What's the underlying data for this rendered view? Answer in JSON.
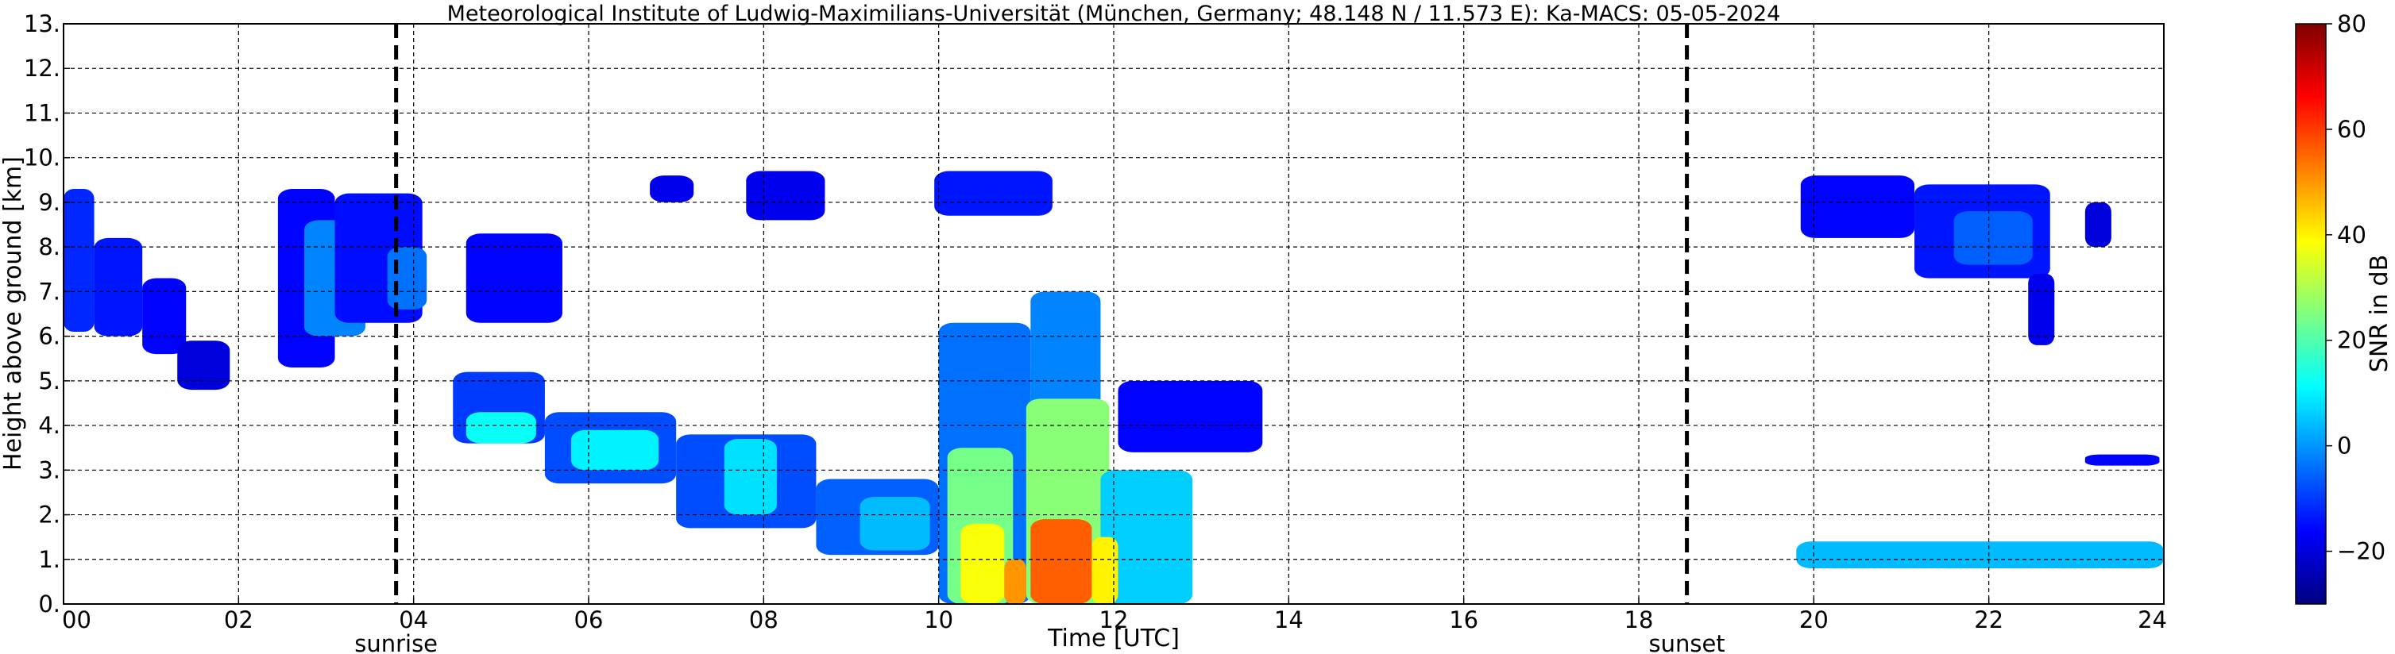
{
  "chart_data": {
    "type": "heatmap",
    "title": "Meteorological Institute of Ludwig-Maximilians-Universität (München, Germany; 48.148 N / 11.573 E):    Ka-MACS: 05-05-2024",
    "xlabel": "Time [UTC]",
    "ylabel": "Height above ground [km]",
    "xlim": [
      0,
      24
    ],
    "ylim": [
      0,
      13
    ],
    "grid": true,
    "x_ticks": [
      {
        "value": 0,
        "label": "00"
      },
      {
        "value": 2,
        "label": "02"
      },
      {
        "value": 4,
        "label": "04"
      },
      {
        "value": 6,
        "label": "06"
      },
      {
        "value": 8,
        "label": "08"
      },
      {
        "value": 10,
        "label": "10"
      },
      {
        "value": 12,
        "label": "12"
      },
      {
        "value": 14,
        "label": "14"
      },
      {
        "value": 16,
        "label": "16"
      },
      {
        "value": 18,
        "label": "18"
      },
      {
        "value": 20,
        "label": "20"
      },
      {
        "value": 22,
        "label": "22"
      },
      {
        "value": 24,
        "label": "24"
      }
    ],
    "y_ticks": [
      {
        "value": 0,
        "label": "0."
      },
      {
        "value": 1,
        "label": "1."
      },
      {
        "value": 2,
        "label": "2."
      },
      {
        "value": 3,
        "label": "3."
      },
      {
        "value": 4,
        "label": "4."
      },
      {
        "value": 5,
        "label": "5."
      },
      {
        "value": 6,
        "label": "6."
      },
      {
        "value": 7,
        "label": "7."
      },
      {
        "value": 8,
        "label": "8."
      },
      {
        "value": 9,
        "label": "9."
      },
      {
        "value": 10,
        "label": "10."
      },
      {
        "value": 11,
        "label": "11."
      },
      {
        "value": 12,
        "label": "12."
      },
      {
        "value": 13,
        "label": "13."
      }
    ],
    "events": [
      {
        "label": "sunrise",
        "time": 3.8
      },
      {
        "label": "sunset",
        "time": 18.55
      }
    ],
    "colorbar": {
      "label": "SNR in dB",
      "range": [
        -30,
        80
      ],
      "ticks": [
        {
          "value": 80,
          "label": "80"
        },
        {
          "value": 60,
          "label": "60"
        },
        {
          "value": 40,
          "label": "40"
        },
        {
          "value": 20,
          "label": "20"
        },
        {
          "value": 0,
          "label": "0"
        },
        {
          "value": -20,
          "label": "−20"
        }
      ],
      "colormap": "jet",
      "colors": [
        "#00007f",
        "#0000ff",
        "#007fff",
        "#00ffff",
        "#7fff7f",
        "#ffff00",
        "#ff7f00",
        "#ff0000",
        "#7f0000"
      ]
    },
    "echo_regions": [
      {
        "time": [
          0.0,
          0.35
        ],
        "height": [
          6.1,
          9.3
        ],
        "snr": -12
      },
      {
        "time": [
          0.35,
          0.9
        ],
        "height": [
          6.0,
          8.2
        ],
        "snr": -14
      },
      {
        "time": [
          0.9,
          1.4
        ],
        "height": [
          5.6,
          7.3
        ],
        "snr": -16
      },
      {
        "time": [
          1.3,
          1.9
        ],
        "height": [
          4.8,
          5.9
        ],
        "snr": -20
      },
      {
        "time": [
          2.45,
          3.1
        ],
        "height": [
          5.3,
          9.3
        ],
        "snr": -16
      },
      {
        "time": [
          2.75,
          3.45
        ],
        "height": [
          6.0,
          8.6
        ],
        "snr": -2
      },
      {
        "time": [
          3.1,
          4.1
        ],
        "height": [
          6.3,
          9.2
        ],
        "snr": -15
      },
      {
        "time": [
          3.7,
          4.15
        ],
        "height": [
          6.6,
          8.0
        ],
        "snr": -4
      },
      {
        "time": [
          4.6,
          5.7
        ],
        "height": [
          6.3,
          8.3
        ],
        "snr": -16
      },
      {
        "time": [
          4.45,
          5.5
        ],
        "height": [
          3.6,
          5.2
        ],
        "snr": -10
      },
      {
        "time": [
          4.6,
          5.4
        ],
        "height": [
          3.6,
          4.3
        ],
        "snr": 12
      },
      {
        "time": [
          5.5,
          7.0
        ],
        "height": [
          2.7,
          4.3
        ],
        "snr": -8
      },
      {
        "time": [
          5.8,
          6.8
        ],
        "height": [
          3.0,
          3.9
        ],
        "snr": 10
      },
      {
        "time": [
          7.0,
          8.6
        ],
        "height": [
          1.7,
          3.8
        ],
        "snr": -8
      },
      {
        "time": [
          7.55,
          8.15
        ],
        "height": [
          2.0,
          3.7
        ],
        "snr": 8
      },
      {
        "time": [
          8.6,
          10.0
        ],
        "height": [
          1.1,
          2.8
        ],
        "snr": -6
      },
      {
        "time": [
          9.1,
          9.9
        ],
        "height": [
          1.2,
          2.4
        ],
        "snr": 4
      },
      {
        "time": [
          6.7,
          7.2
        ],
        "height": [
          9.0,
          9.6
        ],
        "snr": -18
      },
      {
        "time": [
          7.8,
          8.7
        ],
        "height": [
          8.6,
          9.7
        ],
        "snr": -18
      },
      {
        "time": [
          9.95,
          11.3
        ],
        "height": [
          8.7,
          9.7
        ],
        "snr": -14
      },
      {
        "time": [
          10.0,
          11.05
        ],
        "height": [
          0.0,
          6.3
        ],
        "snr": -4
      },
      {
        "time": [
          10.1,
          10.85
        ],
        "height": [
          0.0,
          3.5
        ],
        "snr": 24
      },
      {
        "time": [
          11.05,
          11.85
        ],
        "height": [
          0.0,
          7.0
        ],
        "snr": -2
      },
      {
        "time": [
          11.0,
          11.95
        ],
        "height": [
          0.0,
          4.6
        ],
        "snr": 26
      },
      {
        "time": [
          11.85,
          12.9
        ],
        "height": [
          0.0,
          3.0
        ],
        "snr": 6
      },
      {
        "time": [
          10.25,
          10.75
        ],
        "height": [
          0.0,
          1.8
        ],
        "snr": 38
      },
      {
        "time": [
          10.75,
          11.0
        ],
        "height": [
          0.0,
          1.0
        ],
        "snr": 50
      },
      {
        "time": [
          11.05,
          11.75
        ],
        "height": [
          0.0,
          1.9
        ],
        "snr": 56
      },
      {
        "time": [
          11.75,
          12.05
        ],
        "height": [
          0.0,
          1.5
        ],
        "snr": 40
      },
      {
        "time": [
          12.05,
          13.7
        ],
        "height": [
          3.4,
          5.0
        ],
        "snr": -16
      },
      {
        "time": [
          19.85,
          21.15
        ],
        "height": [
          8.2,
          9.6
        ],
        "snr": -16
      },
      {
        "time": [
          21.15,
          22.7
        ],
        "height": [
          7.3,
          9.4
        ],
        "snr": -14
      },
      {
        "time": [
          21.6,
          22.5
        ],
        "height": [
          7.6,
          8.8
        ],
        "snr": -6
      },
      {
        "time": [
          22.45,
          22.75
        ],
        "height": [
          5.8,
          7.4
        ],
        "snr": -18
      },
      {
        "time": [
          23.1,
          23.4
        ],
        "height": [
          8.0,
          9.0
        ],
        "snr": -20
      },
      {
        "time": [
          23.1,
          23.95
        ],
        "height": [
          3.1,
          3.35
        ],
        "snr": -16
      },
      {
        "time": [
          19.8,
          24.0
        ],
        "height": [
          0.8,
          1.4
        ],
        "snr": 4
      }
    ]
  }
}
